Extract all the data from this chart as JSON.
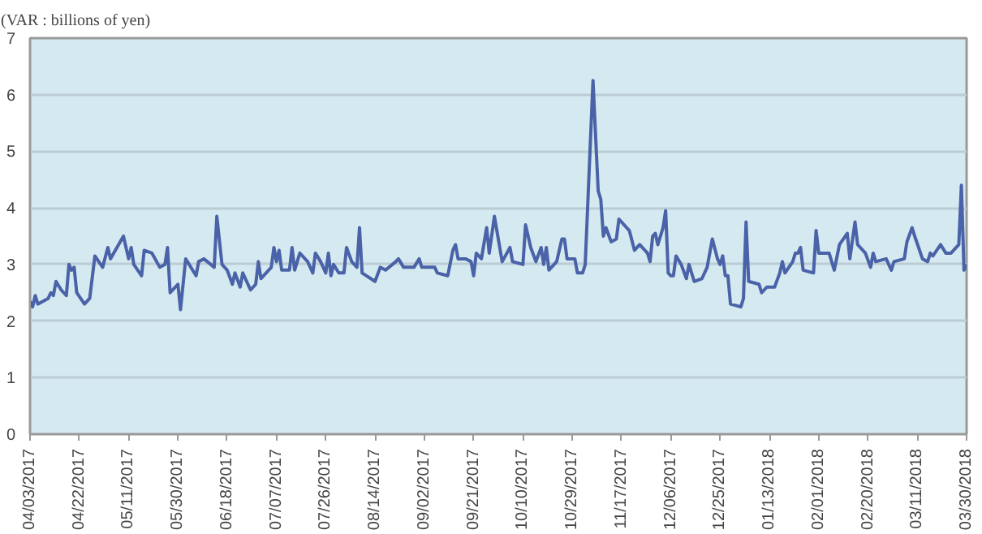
{
  "chart_data": {
    "type": "line",
    "ylabel": "(VAR : billions of yen)",
    "x": [
      "2017-04-03",
      "2017-04-04",
      "2017-04-05",
      "2017-04-06",
      "2017-04-10",
      "2017-04-11",
      "2017-04-12",
      "2017-04-13",
      "2017-04-15",
      "2017-04-17",
      "2017-04-18",
      "2017-04-19",
      "2017-04-20",
      "2017-04-21",
      "2017-04-24",
      "2017-04-26",
      "2017-04-28",
      "2017-05-01",
      "2017-05-03",
      "2017-05-04",
      "2017-05-09",
      "2017-05-11",
      "2017-05-12",
      "2017-05-13",
      "2017-05-16",
      "2017-05-17",
      "2017-05-20",
      "2017-05-23",
      "2017-05-25",
      "2017-05-26",
      "2017-05-27",
      "2017-05-30",
      "2017-05-31",
      "2017-06-02",
      "2017-06-06",
      "2017-06-07",
      "2017-06-09",
      "2017-06-13",
      "2017-06-14",
      "2017-06-16",
      "2017-06-18",
      "2017-06-20",
      "2017-06-21",
      "2017-06-23",
      "2017-06-24",
      "2017-06-27",
      "2017-06-29",
      "2017-06-30",
      "2017-07-01",
      "2017-07-03",
      "2017-07-05",
      "2017-07-06",
      "2017-07-07",
      "2017-07-08",
      "2017-07-09",
      "2017-07-12",
      "2017-07-13",
      "2017-07-14",
      "2017-07-16",
      "2017-07-19",
      "2017-07-21",
      "2017-07-22",
      "2017-07-24",
      "2017-07-26",
      "2017-07-27",
      "2017-07-28",
      "2017-07-29",
      "2017-07-31",
      "2017-08-02",
      "2017-08-03",
      "2017-08-05",
      "2017-08-07",
      "2017-08-08",
      "2017-08-09",
      "2017-08-14",
      "2017-08-16",
      "2017-08-18",
      "2017-08-22",
      "2017-08-23",
      "2017-08-25",
      "2017-08-29",
      "2017-08-31",
      "2017-09-01",
      "2017-09-06",
      "2017-09-07",
      "2017-09-11",
      "2017-09-13",
      "2017-09-14",
      "2017-09-15",
      "2017-09-18",
      "2017-09-20",
      "2017-09-21",
      "2017-09-22",
      "2017-09-24",
      "2017-09-26",
      "2017-09-27",
      "2017-09-29",
      "2017-10-02",
      "2017-10-05",
      "2017-10-06",
      "2017-10-10",
      "2017-10-11",
      "2017-10-13",
      "2017-10-15",
      "2017-10-17",
      "2017-10-18",
      "2017-10-19",
      "2017-10-20",
      "2017-10-23",
      "2017-10-25",
      "2017-10-26",
      "2017-10-27",
      "2017-10-30",
      "2017-10-31",
      "2017-11-02",
      "2017-11-03",
      "2017-11-06",
      "2017-11-08",
      "2017-11-09",
      "2017-11-10",
      "2017-11-11",
      "2017-11-13",
      "2017-11-15",
      "2017-11-16",
      "2017-11-19",
      "2017-11-20",
      "2017-11-22",
      "2017-11-24",
      "2017-11-27",
      "2017-11-28",
      "2017-11-29",
      "2017-11-30",
      "2017-12-01",
      "2017-12-03",
      "2017-12-04",
      "2017-12-05",
      "2017-12-06",
      "2017-12-07",
      "2017-12-08",
      "2017-12-10",
      "2017-12-12",
      "2017-12-13",
      "2017-12-15",
      "2017-12-18",
      "2017-12-20",
      "2017-12-22",
      "2017-12-24",
      "2017-12-25",
      "2017-12-26",
      "2017-12-27",
      "2017-12-28",
      "2017-12-29",
      "2018-01-02",
      "2018-01-03",
      "2018-01-04",
      "2018-01-05",
      "2018-01-09",
      "2018-01-10",
      "2018-01-12",
      "2018-01-15",
      "2018-01-17",
      "2018-01-18",
      "2018-01-19",
      "2018-01-22",
      "2018-01-23",
      "2018-01-24",
      "2018-01-25",
      "2018-01-26",
      "2018-01-30",
      "2018-01-31",
      "2018-02-01",
      "2018-02-05",
      "2018-02-07",
      "2018-02-09",
      "2018-02-12",
      "2018-02-13",
      "2018-02-15",
      "2018-02-16",
      "2018-02-19",
      "2018-02-21",
      "2018-02-22",
      "2018-02-23",
      "2018-02-27",
      "2018-03-01",
      "2018-03-02",
      "2018-03-06",
      "2018-03-07",
      "2018-03-09",
      "2018-03-10",
      "2018-03-13",
      "2018-03-15",
      "2018-03-16",
      "2018-03-17",
      "2018-03-20",
      "2018-03-22",
      "2018-03-24",
      "2018-03-27",
      "2018-03-28",
      "2018-03-29",
      "2018-03-30"
    ],
    "series": [
      {
        "color": "#4a62a8",
        "values": [
          2.35,
          2.25,
          2.45,
          2.3,
          2.4,
          2.5,
          2.45,
          2.7,
          2.55,
          2.45,
          3.0,
          2.9,
          2.95,
          2.5,
          2.3,
          2.4,
          3.15,
          2.95,
          3.3,
          3.1,
          3.5,
          3.1,
          3.3,
          3.0,
          2.8,
          3.25,
          3.2,
          2.95,
          3.0,
          3.3,
          2.5,
          2.65,
          2.2,
          3.1,
          2.8,
          3.05,
          3.1,
          2.95,
          3.85,
          3.0,
          2.9,
          2.65,
          2.85,
          2.6,
          2.85,
          2.55,
          2.65,
          3.05,
          2.75,
          2.85,
          2.95,
          3.3,
          3.05,
          3.25,
          2.9,
          2.9,
          3.3,
          2.9,
          3.2,
          3.05,
          2.85,
          3.2,
          3.05,
          2.85,
          3.2,
          2.8,
          3.0,
          2.85,
          2.85,
          3.3,
          3.05,
          2.95,
          3.65,
          2.85,
          2.7,
          2.95,
          2.9,
          3.05,
          3.1,
          2.95,
          2.95,
          3.1,
          2.95,
          2.95,
          2.85,
          2.8,
          3.25,
          3.35,
          3.1,
          3.1,
          3.05,
          2.8,
          3.2,
          3.1,
          3.65,
          3.2,
          3.85,
          3.05,
          3.3,
          3.05,
          3.0,
          3.7,
          3.3,
          3.05,
          3.3,
          3.0,
          3.3,
          2.9,
          3.05,
          3.45,
          3.45,
          3.1,
          3.1,
          2.85,
          2.85,
          3.0,
          6.25,
          4.3,
          4.15,
          3.5,
          3.65,
          3.4,
          3.45,
          3.8,
          3.65,
          3.6,
          3.25,
          3.35,
          3.2,
          3.05,
          3.5,
          3.55,
          3.35,
          3.65,
          3.95,
          2.85,
          2.8,
          2.8,
          3.15,
          3.0,
          2.75,
          3.0,
          2.7,
          2.75,
          2.95,
          3.45,
          3.1,
          3.0,
          3.15,
          2.8,
          2.8,
          2.3,
          2.25,
          2.4,
          3.75,
          2.7,
          2.65,
          2.5,
          2.6,
          2.6,
          2.85,
          3.05,
          2.85,
          3.05,
          3.2,
          3.2,
          3.3,
          2.9,
          2.85,
          3.6,
          3.2,
          3.2,
          2.9,
          3.35,
          3.55,
          3.1,
          3.75,
          3.35,
          3.2,
          2.95,
          3.2,
          3.05,
          3.1,
          2.9,
          3.05,
          3.1,
          3.4,
          3.65,
          3.5,
          3.1,
          3.05,
          3.2,
          3.15,
          3.35,
          3.2,
          3.2,
          3.35,
          4.4,
          2.9,
          3.0
        ]
      }
    ],
    "xlim": [
      "2017-04-03",
      "2018-03-30"
    ],
    "xticks": [
      {
        "value": "2017-04-03",
        "label": "04/03/2017"
      },
      {
        "value": "2017-04-22",
        "label": "04/22/2017"
      },
      {
        "value": "2017-05-11",
        "label": "05/11/2017"
      },
      {
        "value": "2017-05-30",
        "label": "05/30/2017"
      },
      {
        "value": "2017-06-18",
        "label": "06/18/2017"
      },
      {
        "value": "2017-07-07",
        "label": "07/07/2017"
      },
      {
        "value": "2017-07-26",
        "label": "07/26/2017"
      },
      {
        "value": "2017-08-14",
        "label": "08/14/2017"
      },
      {
        "value": "2017-09-02",
        "label": "09/02/2017"
      },
      {
        "value": "2017-09-21",
        "label": "09/21/2017"
      },
      {
        "value": "2017-10-10",
        "label": "10/10/2017"
      },
      {
        "value": "2017-10-29",
        "label": "10/29/2017"
      },
      {
        "value": "2017-11-17",
        "label": "11/17/2017"
      },
      {
        "value": "2017-12-06",
        "label": "12/06/2017"
      },
      {
        "value": "2017-12-25",
        "label": "12/25/2017"
      },
      {
        "value": "2018-01-13",
        "label": "01/13/2018"
      },
      {
        "value": "2018-02-01",
        "label": "02/01/2018"
      },
      {
        "value": "2018-02-20",
        "label": "02/20/2018"
      },
      {
        "value": "2018-03-11",
        "label": "03/11/2018"
      },
      {
        "value": "2018-03-30",
        "label": "03/30/2018"
      }
    ],
    "ylim": [
      0,
      7
    ],
    "yticks": [
      0,
      1,
      2,
      3,
      4,
      5,
      6,
      7
    ],
    "grid": "y",
    "marker": "none",
    "line_style": "solid"
  }
}
